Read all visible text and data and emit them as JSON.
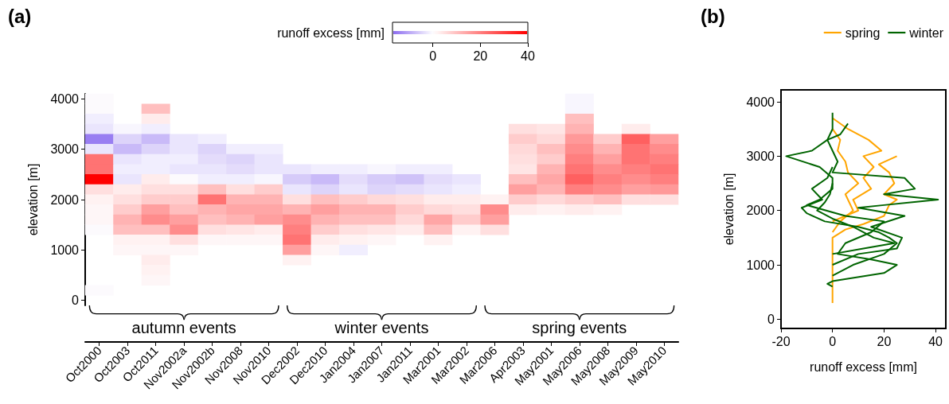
{
  "chart_data": [
    {
      "type": "heatmap",
      "title": "(a)",
      "ylabel": "elevation [m]",
      "clabel": "runoff excess [mm]",
      "clim": [
        -17,
        40
      ],
      "cticks": [
        0,
        20,
        40
      ],
      "categories": [
        "Oct2000",
        "Oct2003",
        "Oct2011",
        "Nov2002a",
        "Nov2002b",
        "Nov2008",
        "Nov2010",
        "Dec2002",
        "Dec2010",
        "Jan2004",
        "Jan2007",
        "Jan2011",
        "Mar2001",
        "Mar2002",
        "Mar2006",
        "Apr2003",
        "May2001",
        "May2006",
        "May2008",
        "May2009",
        "May2010"
      ],
      "y_categories": [
        "4000",
        null,
        null,
        null,
        null,
        "3000",
        null,
        null,
        null,
        null,
        "2000",
        null,
        null,
        null,
        null,
        "1000",
        null,
        null,
        null,
        null,
        "0"
      ],
      "cells": [
        [
          0,
          null,
          null,
          null,
          null,
          null,
          null,
          null,
          null,
          null,
          null,
          null,
          null,
          null,
          null,
          null,
          null,
          -1,
          null,
          null,
          null
        ],
        [
          0,
          null,
          10,
          null,
          null,
          null,
          null,
          null,
          null,
          null,
          null,
          null,
          null,
          null,
          null,
          null,
          null,
          -1,
          null,
          null,
          null
        ],
        [
          -2,
          null,
          3,
          null,
          null,
          null,
          null,
          null,
          null,
          null,
          null,
          null,
          null,
          null,
          null,
          null,
          null,
          10,
          null,
          null,
          null
        ],
        [
          -3,
          -1,
          -2,
          null,
          null,
          null,
          null,
          null,
          null,
          null,
          null,
          null,
          null,
          null,
          null,
          5,
          4,
          12,
          null,
          3,
          null
        ],
        [
          -15,
          -5,
          -8,
          -3,
          -2,
          null,
          null,
          null,
          null,
          null,
          null,
          null,
          null,
          null,
          null,
          8,
          6,
          16,
          8,
          25,
          15
        ],
        [
          -3,
          -8,
          -5,
          -3,
          -5,
          -2,
          -2,
          null,
          null,
          null,
          null,
          null,
          null,
          null,
          null,
          6,
          10,
          18,
          12,
          22,
          18
        ],
        [
          22,
          -3,
          -2,
          -2,
          -4,
          -5,
          -3,
          null,
          null,
          null,
          null,
          null,
          null,
          null,
          null,
          5,
          8,
          20,
          15,
          22,
          20
        ],
        [
          22,
          -2,
          -2,
          -3,
          -3,
          -4,
          -3,
          -3,
          -2,
          -2,
          -1,
          -2,
          -2,
          null,
          null,
          4,
          12,
          22,
          18,
          20,
          22
        ],
        [
          40,
          -3,
          3,
          0,
          -2,
          -2,
          -1,
          -6,
          -8,
          -4,
          -6,
          -7,
          -4,
          -3,
          null,
          10,
          14,
          25,
          20,
          18,
          20
        ],
        [
          5,
          3,
          5,
          5,
          10,
          5,
          8,
          -3,
          -5,
          -3,
          -5,
          -4,
          -3,
          -2,
          null,
          15,
          12,
          20,
          18,
          15,
          16
        ],
        [
          2,
          5,
          8,
          8,
          22,
          12,
          12,
          5,
          10,
          8,
          6,
          5,
          3,
          3,
          2,
          8,
          6,
          8,
          10,
          5,
          5
        ],
        [
          1,
          8,
          15,
          10,
          12,
          14,
          14,
          12,
          15,
          12,
          12,
          8,
          6,
          5,
          18,
          3,
          2,
          3,
          2,
          null,
          null
        ],
        [
          1,
          12,
          18,
          15,
          10,
          12,
          15,
          18,
          12,
          10,
          10,
          6,
          14,
          8,
          15,
          null,
          null,
          null,
          null,
          null,
          null
        ],
        [
          0,
          10,
          10,
          18,
          5,
          4,
          3,
          20,
          8,
          5,
          4,
          3,
          10,
          2,
          5,
          null,
          null,
          null,
          null,
          null,
          null
        ],
        [
          null,
          2,
          2,
          5,
          1,
          1,
          1,
          22,
          3,
          2,
          1,
          null,
          2,
          null,
          null,
          null,
          null,
          null,
          null,
          null,
          null
        ],
        [
          null,
          1,
          1,
          1,
          null,
          null,
          null,
          15,
          1,
          -2,
          null,
          null,
          null,
          null,
          null,
          null,
          null,
          null,
          null,
          null,
          null
        ],
        [
          null,
          null,
          3,
          null,
          null,
          null,
          null,
          2,
          null,
          null,
          null,
          null,
          null,
          null,
          null,
          null,
          null,
          null,
          null,
          null,
          null
        ],
        [
          null,
          null,
          2,
          null,
          null,
          null,
          null,
          null,
          null,
          null,
          null,
          null,
          null,
          null,
          null,
          null,
          null,
          null,
          null,
          null,
          null
        ],
        [
          null,
          null,
          1,
          null,
          null,
          null,
          null,
          null,
          null,
          null,
          null,
          null,
          null,
          null,
          null,
          null,
          null,
          null,
          null,
          null,
          null
        ],
        [
          0,
          null,
          null,
          null,
          null,
          null,
          null,
          null,
          null,
          null,
          null,
          null,
          null,
          null,
          null,
          null,
          null,
          null,
          null,
          null,
          null
        ],
        [
          null,
          null,
          null,
          null,
          null,
          null,
          null,
          null,
          null,
          null,
          null,
          null,
          null,
          null,
          null,
          null,
          null,
          null,
          null,
          null,
          null
        ]
      ],
      "annotations": [
        "autumn events",
        "winter events",
        "spring events"
      ]
    },
    {
      "type": "line",
      "title": "(b)",
      "xlabel": "runoff excess [mm]",
      "ylabel": "elevation [m]",
      "xlim": [
        -20,
        44
      ],
      "xticks": [
        -20,
        0,
        20,
        40
      ],
      "ylim": [
        -170,
        4220
      ],
      "yticks": [
        0,
        1000,
        2000,
        3000,
        4000
      ],
      "legend": "top right",
      "series": [
        {
          "name": "spring",
          "color": "#ffa500",
          "x": [
            0,
            0,
            5,
            12,
            20,
            22,
            25,
            20,
            24,
            22,
            18,
            25
          ],
          "values": [
            300,
            1500,
            1650,
            1750,
            1900,
            2100,
            2200,
            2300,
            2500,
            2700,
            2850,
            3000
          ]
        },
        {
          "color": "#ffa500",
          "x": [
            0,
            5,
            10,
            8,
            15,
            12,
            16,
            12,
            19,
            14,
            6,
            0
          ],
          "values": [
            1800,
            1900,
            2000,
            2200,
            2400,
            2600,
            2800,
            3000,
            3100,
            3300,
            3500,
            3700
          ]
        },
        {
          "color": "#ffa500",
          "x": [
            0,
            3,
            8,
            5,
            10,
            6,
            5,
            2,
            3,
            0
          ],
          "values": [
            1600,
            1800,
            2000,
            2300,
            2500,
            2700,
            2900,
            3100,
            3300,
            3500
          ]
        },
        {
          "name": "winter",
          "color": "#006400",
          "x": [
            0,
            -2,
            0,
            20,
            25,
            15,
            2,
            5,
            15,
            20,
            5,
            -10,
            -5,
            0,
            0,
            -5,
            -18,
            -8,
            -2,
            0,
            0
          ],
          "values": [
            600,
            650,
            700,
            850,
            1000,
            1100,
            1200,
            1400,
            1600,
            1800,
            1900,
            2100,
            2200,
            2400,
            2600,
            2800,
            3000,
            3100,
            3300,
            3500,
            3800
          ]
        },
        {
          "color": "#006400",
          "x": [
            0,
            10,
            25,
            27,
            15,
            28,
            10,
            20,
            41,
            20,
            32,
            28,
            0,
            2,
            0,
            -2,
            3,
            6
          ],
          "values": [
            1000,
            1200,
            1300,
            1500,
            1700,
            1900,
            2050,
            2100,
            2200,
            2300,
            2400,
            2600,
            2700,
            2900,
            3100,
            3300,
            3400,
            3600
          ]
        },
        {
          "color": "#006400",
          "x": [
            0,
            8,
            20,
            25,
            22,
            18,
            10,
            -3,
            -10,
            -12,
            -4,
            -8,
            -2,
            0
          ],
          "values": [
            800,
            1000,
            1200,
            1400,
            1500,
            1600,
            1700,
            1800,
            1950,
            2050,
            2200,
            2400,
            2600,
            2800
          ]
        },
        {
          "color": "#006400",
          "x": [
            0,
            12,
            24,
            16,
            8,
            0,
            -6,
            -3,
            -1,
            0
          ],
          "values": [
            1200,
            1300,
            1400,
            1500,
            1700,
            1850,
            2000,
            2150,
            2300,
            2500
          ]
        }
      ]
    }
  ]
}
